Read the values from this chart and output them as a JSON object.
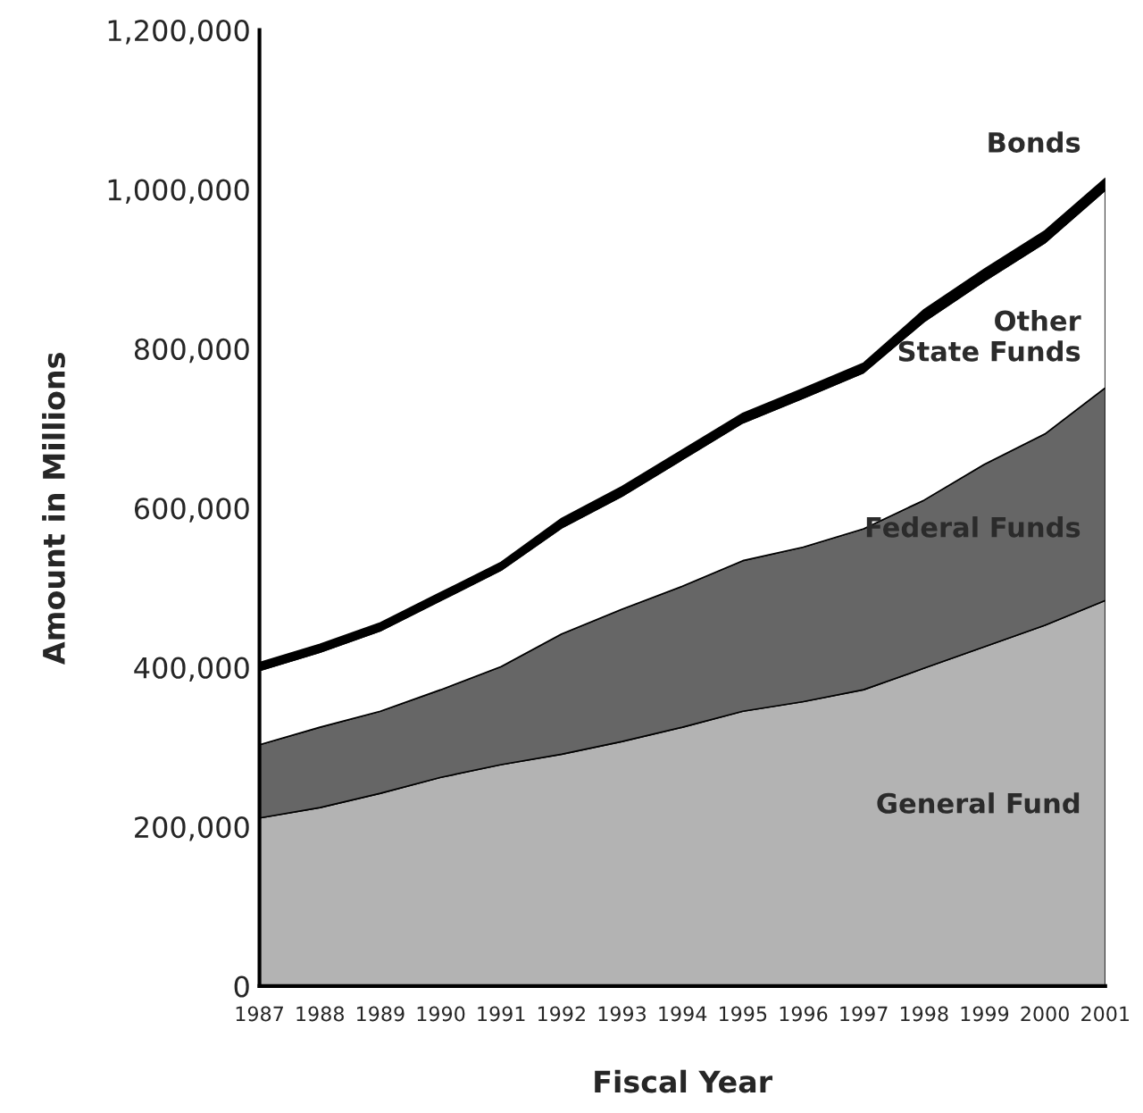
{
  "chart_data": {
    "type": "area",
    "stacked": true,
    "xlabel": "Fiscal Year",
    "ylabel": "Amount in Millions",
    "x": [
      1987,
      1988,
      1989,
      1990,
      1991,
      1992,
      1993,
      1994,
      1995,
      1996,
      1997,
      1998,
      1999,
      2000,
      2001
    ],
    "series": [
      {
        "name": "General Fund",
        "color": "#b3b3b3",
        "values": [
          211000,
          224000,
          242000,
          262000,
          278000,
          291000,
          307000,
          325000,
          345000,
          357000,
          372000,
          399000,
          426000,
          453000,
          484000
        ]
      },
      {
        "name": "Federal Funds",
        "color": "#666666",
        "values": [
          92000,
          101000,
          103000,
          110000,
          123000,
          151000,
          166000,
          177000,
          189000,
          194000,
          202000,
          211000,
          229000,
          240000,
          267000
        ]
      },
      {
        "name": "Other\nState Funds",
        "color": "#ffffff",
        "values": [
          93000,
          94000,
          101000,
          112000,
          121000,
          133000,
          142000,
          159000,
          173000,
          187000,
          196000,
          224000,
          230000,
          240000,
          248000
        ]
      },
      {
        "name": "Bonds",
        "color": "#000000",
        "values": [
          10000,
          10000,
          10000,
          10000,
          10000,
          12000,
          12000,
          12000,
          12000,
          12000,
          12000,
          15000,
          15000,
          15000,
          15000
        ]
      }
    ],
    "xlim": [
      1987,
      2001
    ],
    "xticks": [
      1987,
      1988,
      1989,
      1990,
      1991,
      1992,
      1993,
      1994,
      1995,
      1996,
      1997,
      1998,
      1999,
      2000,
      2001
    ],
    "ylim": [
      0,
      1200000
    ],
    "yticks": [
      0,
      {
        "value": 200000,
        "label": "200,000"
      },
      {
        "value": 400000,
        "label": "400,000"
      },
      {
        "value": 600000,
        "label": "600,000"
      },
      {
        "value": 800000,
        "label": "800,000"
      },
      {
        "value": 1000000,
        "label": "1,000,000"
      },
      {
        "value": 1200000,
        "label": "1,200,000"
      }
    ]
  }
}
